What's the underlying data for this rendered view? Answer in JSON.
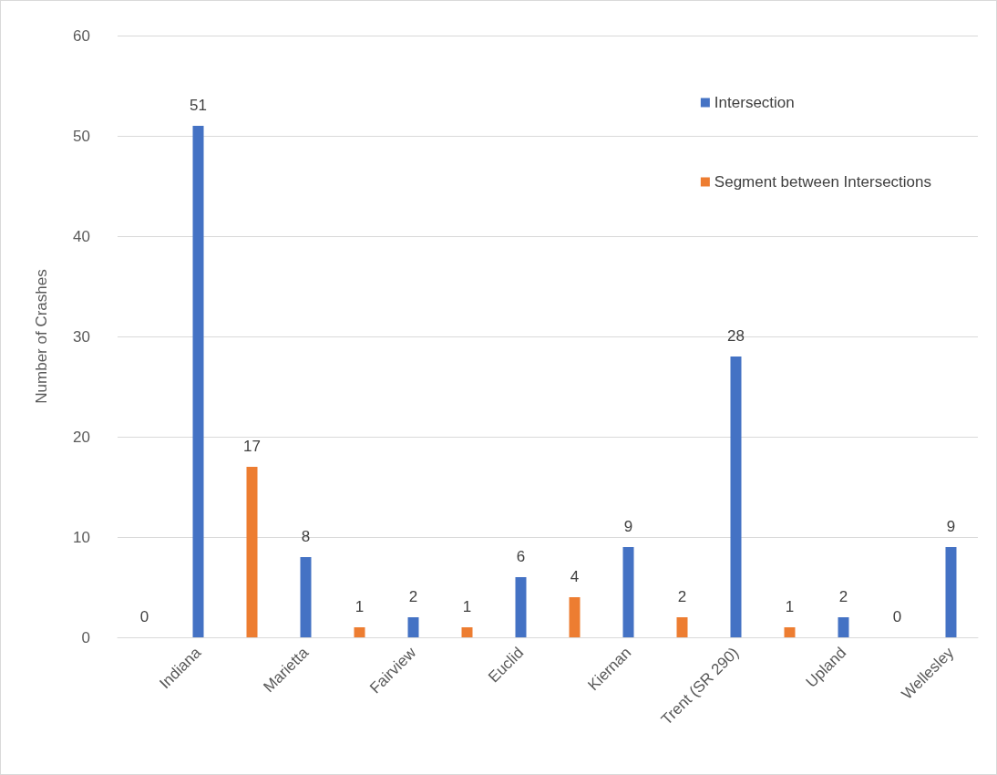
{
  "chart_data": {
    "type": "bar",
    "ylabel": "Number of Crashes",
    "categories": [
      null,
      "Indiana",
      null,
      "Marietta",
      null,
      "Fairview",
      null,
      "Euclid",
      null,
      "Kiernan",
      null,
      "Trent (SR 290)",
      null,
      "Upland",
      null,
      "Wellesley"
    ],
    "series": [
      {
        "name": "Intersection",
        "color": "#4472c4",
        "values": [
          null,
          51,
          null,
          8,
          null,
          2,
          null,
          6,
          null,
          9,
          null,
          28,
          null,
          2,
          null,
          9
        ]
      },
      {
        "name": "Segment between Intersections",
        "color": "#ed7d31",
        "values": [
          0,
          null,
          17,
          null,
          1,
          null,
          1,
          null,
          4,
          null,
          2,
          null,
          1,
          null,
          0,
          null
        ]
      }
    ],
    "ylim": [
      0,
      60
    ],
    "yticks": [
      0,
      10,
      20,
      30,
      40,
      50,
      60
    ],
    "grid": "y",
    "legend": "top right",
    "data_labels": true
  }
}
